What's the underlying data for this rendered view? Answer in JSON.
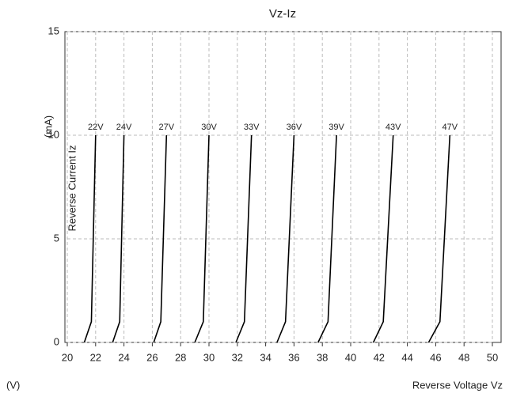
{
  "chart_data": {
    "type": "line",
    "title": "Vz-Iz",
    "x_label": "Reverse Voltage Vz",
    "x_unit": "(V)",
    "y_label": "Reverse Current Iz",
    "y_unit": "(mA)",
    "xlim": [
      20,
      50
    ],
    "xticks": [
      20,
      22,
      24,
      26,
      28,
      30,
      32,
      34,
      36,
      38,
      40,
      42,
      44,
      46,
      48,
      50
    ],
    "ylim": [
      0,
      15
    ],
    "yticks": [
      0,
      5,
      10,
      15
    ],
    "grid": true,
    "color": "#000000",
    "series": [
      {
        "name": "22V",
        "x": [
          21.2,
          21.7,
          22
        ],
        "values": [
          0,
          1,
          10
        ]
      },
      {
        "name": "24V",
        "x": [
          23.2,
          23.7,
          24
        ],
        "values": [
          0,
          1,
          10
        ]
      },
      {
        "name": "27V",
        "x": [
          26.1,
          26.6,
          27
        ],
        "values": [
          0,
          1,
          10
        ]
      },
      {
        "name": "30V",
        "x": [
          29,
          29.6,
          30
        ],
        "values": [
          0,
          1,
          10
        ]
      },
      {
        "name": "33V",
        "x": [
          31.9,
          32.5,
          33
        ],
        "values": [
          0,
          1,
          10
        ]
      },
      {
        "name": "36V",
        "x": [
          34.8,
          35.4,
          36
        ],
        "values": [
          0,
          1,
          10
        ]
      },
      {
        "name": "39V",
        "x": [
          37.7,
          38.4,
          39
        ],
        "values": [
          0,
          1,
          10
        ]
      },
      {
        "name": "43V",
        "x": [
          41.6,
          42.3,
          43
        ],
        "values": [
          0,
          1,
          10
        ]
      },
      {
        "name": "47V",
        "x": [
          45.5,
          46.3,
          47
        ],
        "values": [
          0,
          1,
          10
        ]
      }
    ]
  }
}
